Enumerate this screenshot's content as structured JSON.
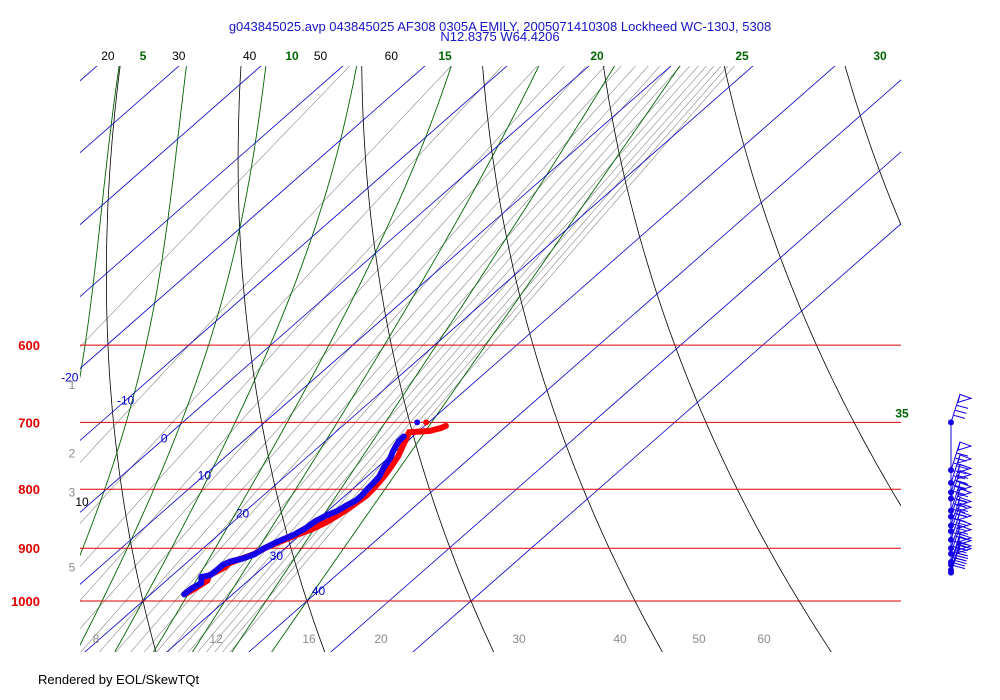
{
  "header": {
    "title_line1": "g043845025.avp 043845025 AF308 0305A EMILY, 2005071410308 Lockheed WC-130J,  5308",
    "title_line2": "N12.8375 W64.4206"
  },
  "footer": {
    "text": "Rendered by EOL/SkewTQt"
  },
  "colors": {
    "isobar": "#e00000",
    "isotherm": "#0000cc",
    "dry_adiabat": "#000000",
    "moist_adiabat": "#006400",
    "mixing_ratio": "#8c8c8c",
    "temperature_trace": "#ff0000",
    "dewpoint_trace": "#1400e6",
    "title": "#1414c8"
  },
  "chart_data": {
    "type": "skew-t",
    "pressure_levels": [
      "600",
      "700",
      "800",
      "900",
      "1000"
    ],
    "isotherm_labels": [
      "-20",
      "-10",
      "0",
      "10",
      "20",
      "30",
      "40"
    ],
    "dry_adiabat_labels": [
      "10",
      "20",
      "30",
      "40",
      "50",
      "60"
    ],
    "moist_adiabat_labels": [
      "5",
      "10",
      "15",
      "20",
      "25",
      "30",
      "35"
    ],
    "height_labels": [
      "1",
      "2",
      "3",
      "5"
    ],
    "mixing_ratio_labels": [
      "8",
      "12",
      "16",
      "20",
      "30",
      "40",
      "50",
      "60"
    ],
    "temperature_trace": [
      [
        24.2,
        986
      ],
      [
        24.6,
        975
      ],
      [
        25.0,
        960
      ],
      [
        24.5,
        950
      ],
      [
        25.3,
        935
      ],
      [
        25.2,
        928
      ],
      [
        26.0,
        920
      ],
      [
        27.0,
        911
      ],
      [
        27.5,
        900
      ],
      [
        28.5,
        888
      ],
      [
        29.8,
        874
      ],
      [
        30.6,
        867
      ],
      [
        31.4,
        855
      ],
      [
        31.8,
        844
      ],
      [
        32.2,
        832
      ],
      [
        32.4,
        821
      ],
      [
        32.6,
        811
      ],
      [
        32.5,
        801
      ],
      [
        32.3,
        790
      ],
      [
        32.0,
        777
      ],
      [
        31.6,
        765
      ],
      [
        31.0,
        749
      ],
      [
        30.2,
        735
      ],
      [
        29.4,
        721
      ],
      [
        29.0,
        714
      ],
      [
        30.1,
        713
      ],
      [
        31.3,
        712
      ],
      [
        32.3,
        708
      ],
      [
        32.6,
        705
      ]
    ],
    "dewpoint_trace": [
      [
        24.1,
        987
      ],
      [
        24.2,
        975
      ],
      [
        24.6,
        965
      ],
      [
        23.8,
        953
      ],
      [
        24.6,
        950
      ],
      [
        24.7,
        940
      ],
      [
        24.7,
        930
      ],
      [
        25.2,
        924
      ],
      [
        26.2,
        919
      ],
      [
        27.1,
        911
      ],
      [
        27.4,
        901
      ],
      [
        28.2,
        888
      ],
      [
        29.2,
        876
      ],
      [
        29.7,
        865
      ],
      [
        29.9,
        853
      ],
      [
        30.4,
        844
      ],
      [
        31.2,
        835
      ],
      [
        31.5,
        827
      ],
      [
        32.0,
        818
      ],
      [
        32.0,
        810
      ],
      [
        31.8,
        801
      ],
      [
        31.7,
        790
      ],
      [
        31.5,
        780
      ],
      [
        30.8,
        766
      ],
      [
        30.3,
        752
      ],
      [
        29.7,
        742
      ],
      [
        29.3,
        734
      ],
      [
        29.0,
        727
      ],
      [
        28.9,
        720
      ]
    ],
    "upper_points": {
      "temperature": [
        29.7,
        700
      ],
      "dewpoint": [
        28.6,
        700
      ]
    },
    "wind_barb_levels": [
      700,
      770,
      790,
      805,
      815,
      835,
      845,
      860,
      870,
      885,
      900,
      910,
      925,
      930,
      940,
      945
    ]
  }
}
